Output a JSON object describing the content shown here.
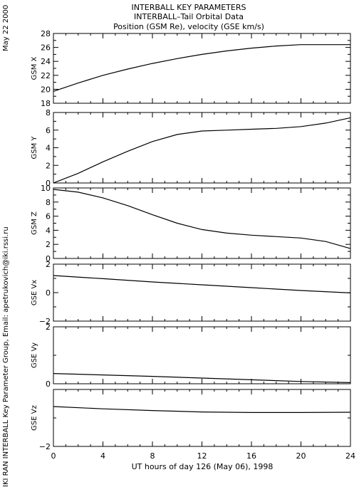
{
  "header": {
    "title": "INTERBALL KEY PARAMETERS",
    "subtitle": "INTERBALL–Tail Orbital Data",
    "units": "Position (GSM Re), velocity (GSE km/s)"
  },
  "side_date": "May 22 2000",
  "side_credit": "IKI RAN INTERBALL Key Parameter Group, Email: apetrukovich@iki.rssi.ru",
  "x_axis": {
    "label": "UT hours of day 126 (May 06), 1998",
    "range": [
      0,
      24
    ],
    "ticks": [
      0,
      4,
      8,
      12,
      16,
      20,
      24
    ],
    "tick_labels": [
      "0",
      "4",
      "8",
      "12",
      "16",
      "20",
      "24"
    ]
  },
  "chart_data": [
    {
      "type": "line",
      "ylabel": "GSM X",
      "ylim": [
        18,
        28
      ],
      "yticks": [
        18,
        20,
        22,
        24,
        26,
        28
      ],
      "ytick_labels": [
        "18",
        "20",
        "22",
        "24",
        "26",
        "28"
      ],
      "x": [
        0,
        2,
        4,
        6,
        8,
        10,
        12,
        14,
        16,
        18,
        20,
        22,
        24
      ],
      "values": [
        19.7,
        20.9,
        22.0,
        22.9,
        23.7,
        24.4,
        25.0,
        25.5,
        25.9,
        26.2,
        26.4,
        26.4,
        26.4
      ]
    },
    {
      "type": "line",
      "ylabel": "GSM Y",
      "ylim": [
        0,
        8
      ],
      "yticks": [
        0,
        2,
        4,
        6,
        8
      ],
      "ytick_labels": [
        "0",
        "2",
        "4",
        "6",
        "8"
      ],
      "x": [
        0,
        2,
        4,
        6,
        8,
        10,
        12,
        14,
        16,
        18,
        20,
        22,
        24
      ],
      "values": [
        0.0,
        1.1,
        2.4,
        3.6,
        4.7,
        5.5,
        5.9,
        6.0,
        6.1,
        6.2,
        6.4,
        6.8,
        7.4
      ]
    },
    {
      "type": "line",
      "ylabel": "GSM Z",
      "ylim": [
        0,
        10
      ],
      "yticks": [
        0,
        2,
        4,
        6,
        8,
        10
      ],
      "ytick_labels": [
        "0",
        "2",
        "4",
        "6",
        "8",
        "10"
      ],
      "x": [
        0,
        2,
        4,
        6,
        8,
        10,
        12,
        14,
        16,
        18,
        20,
        22,
        24
      ],
      "values": [
        9.8,
        9.4,
        8.6,
        7.5,
        6.2,
        5.0,
        4.1,
        3.6,
        3.3,
        3.1,
        2.9,
        2.4,
        1.4
      ]
    },
    {
      "type": "line",
      "ylabel": "GSE Vx",
      "ylim": [
        -2,
        2
      ],
      "yticks": [
        -2,
        0,
        2
      ],
      "ytick_labels": [
        "−2",
        "0",
        "2"
      ],
      "x": [
        0,
        4,
        8,
        12,
        16,
        20,
        24
      ],
      "values": [
        1.2,
        0.98,
        0.75,
        0.55,
        0.35,
        0.15,
        -0.02
      ]
    },
    {
      "type": "line",
      "ylabel": "GSE Vy",
      "ylim": [
        0,
        2
      ],
      "yticks": [
        0,
        2
      ],
      "ytick_labels": [
        "0",
        "2"
      ],
      "x": [
        0,
        4,
        8,
        12,
        16,
        20,
        24
      ],
      "values": [
        0.36,
        0.31,
        0.26,
        0.2,
        0.14,
        0.08,
        0.04
      ]
    },
    {
      "type": "line",
      "ylabel": "GSE Vz",
      "ylim": [
        -2,
        0
      ],
      "yticks": [
        -2,
        0
      ],
      "ytick_labels": [
        "−2",
        ""
      ],
      "x": [
        0,
        4,
        8,
        12,
        16,
        20,
        24
      ],
      "values": [
        -0.6,
        -0.68,
        -0.74,
        -0.79,
        -0.81,
        -0.81,
        -0.8
      ]
    }
  ]
}
